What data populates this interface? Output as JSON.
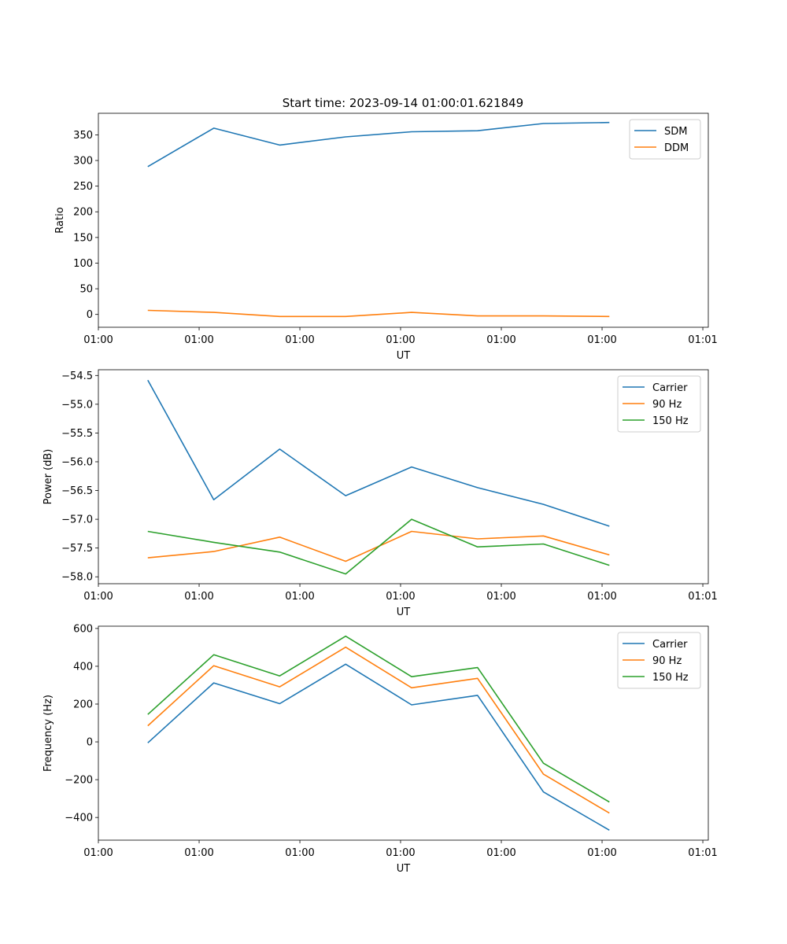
{
  "figure_title": "Start time: 2023-09-14 01:00:01.621849",
  "colors": {
    "c0": "#1f77b4",
    "c1": "#ff7f0e",
    "c2": "#2ca02c"
  },
  "chart_data": [
    {
      "type": "line",
      "title": "Start time: 2023-09-14 01:00:01.621849",
      "xlabel": "UT",
      "ylabel": "Ratio",
      "x": [
        1,
        2,
        3,
        4,
        5,
        6,
        7,
        8
      ],
      "xlim": [
        0.25,
        9.5
      ],
      "x_ticks": [
        0.25,
        1.778,
        3.306,
        4.833,
        6.361,
        7.889,
        9.417
      ],
      "x_tick_labels": [
        "01:00",
        "01:00",
        "01:00",
        "01:00",
        "01:00",
        "01:00",
        "01:01"
      ],
      "ylim": [
        -25,
        392
      ],
      "y_ticks": [
        0,
        50,
        100,
        150,
        200,
        250,
        300,
        350
      ],
      "y_tick_labels": [
        "0",
        "50",
        "100",
        "150",
        "200",
        "250",
        "300",
        "350"
      ],
      "legend_position": "top-right",
      "series": [
        {
          "name": "SDM",
          "color": "#1f77b4",
          "values": [
            288,
            363,
            330,
            346,
            356,
            358,
            372,
            374
          ]
        },
        {
          "name": "DDM",
          "color": "#ff7f0e",
          "values": [
            8,
            4,
            -4,
            -4,
            4,
            -3,
            -3,
            -4
          ]
        }
      ]
    },
    {
      "type": "line",
      "xlabel": "UT",
      "ylabel": "Power (dB)",
      "x": [
        1,
        2,
        3,
        4,
        5,
        6,
        7,
        8
      ],
      "xlim": [
        0.25,
        9.5
      ],
      "x_ticks": [
        0.25,
        1.778,
        3.306,
        4.833,
        6.361,
        7.889,
        9.417
      ],
      "x_tick_labels": [
        "01:00",
        "01:00",
        "01:00",
        "01:00",
        "01:00",
        "01:00",
        "01:01"
      ],
      "ylim": [
        -58.12,
        -54.4
      ],
      "y_ticks": [
        -58.0,
        -57.5,
        -57.0,
        -56.5,
        -56.0,
        -55.5,
        -55.0,
        -54.5
      ],
      "y_tick_labels": [
        "−58.0",
        "−57.5",
        "−57.0",
        "−56.5",
        "−56.0",
        "−55.5",
        "−55.0",
        "−54.5"
      ],
      "legend_position": "top-right",
      "series": [
        {
          "name": "Carrier",
          "color": "#1f77b4",
          "values": [
            -54.58,
            -56.66,
            -55.78,
            -56.59,
            -56.09,
            -56.45,
            -56.74,
            -57.12
          ]
        },
        {
          "name": "90 Hz",
          "color": "#ff7f0e",
          "values": [
            -57.67,
            -57.56,
            -57.31,
            -57.73,
            -57.21,
            -57.34,
            -57.29,
            -57.62
          ]
        },
        {
          "name": "150 Hz",
          "color": "#2ca02c",
          "values": [
            -57.21,
            -57.4,
            -57.57,
            -57.95,
            -57.0,
            -57.48,
            -57.43,
            -57.8
          ]
        }
      ]
    },
    {
      "type": "line",
      "xlabel": "UT",
      "ylabel": "Frequency (Hz)",
      "x": [
        1,
        2,
        3,
        4,
        5,
        6,
        7,
        8
      ],
      "xlim": [
        0.25,
        9.5
      ],
      "x_ticks": [
        0.25,
        1.778,
        3.306,
        4.833,
        6.361,
        7.889,
        9.417
      ],
      "x_tick_labels": [
        "01:00",
        "01:00",
        "01:00",
        "01:00",
        "01:00",
        "01:00",
        "01:01"
      ],
      "ylim": [
        -520,
        612
      ],
      "y_ticks": [
        -400,
        -200,
        0,
        200,
        400,
        600
      ],
      "y_tick_labels": [
        "−400",
        "−200",
        "0",
        "200",
        "400",
        "600"
      ],
      "legend_position": "top-right",
      "series": [
        {
          "name": "Carrier",
          "color": "#1f77b4",
          "values": [
            -5,
            312,
            202,
            411,
            196,
            246,
            -265,
            -467
          ]
        },
        {
          "name": "90 Hz",
          "color": "#ff7f0e",
          "values": [
            85,
            403,
            291,
            501,
            286,
            336,
            -171,
            -377
          ]
        },
        {
          "name": "150 Hz",
          "color": "#2ca02c",
          "values": [
            145,
            461,
            349,
            559,
            345,
            393,
            -113,
            -318
          ]
        }
      ]
    }
  ]
}
